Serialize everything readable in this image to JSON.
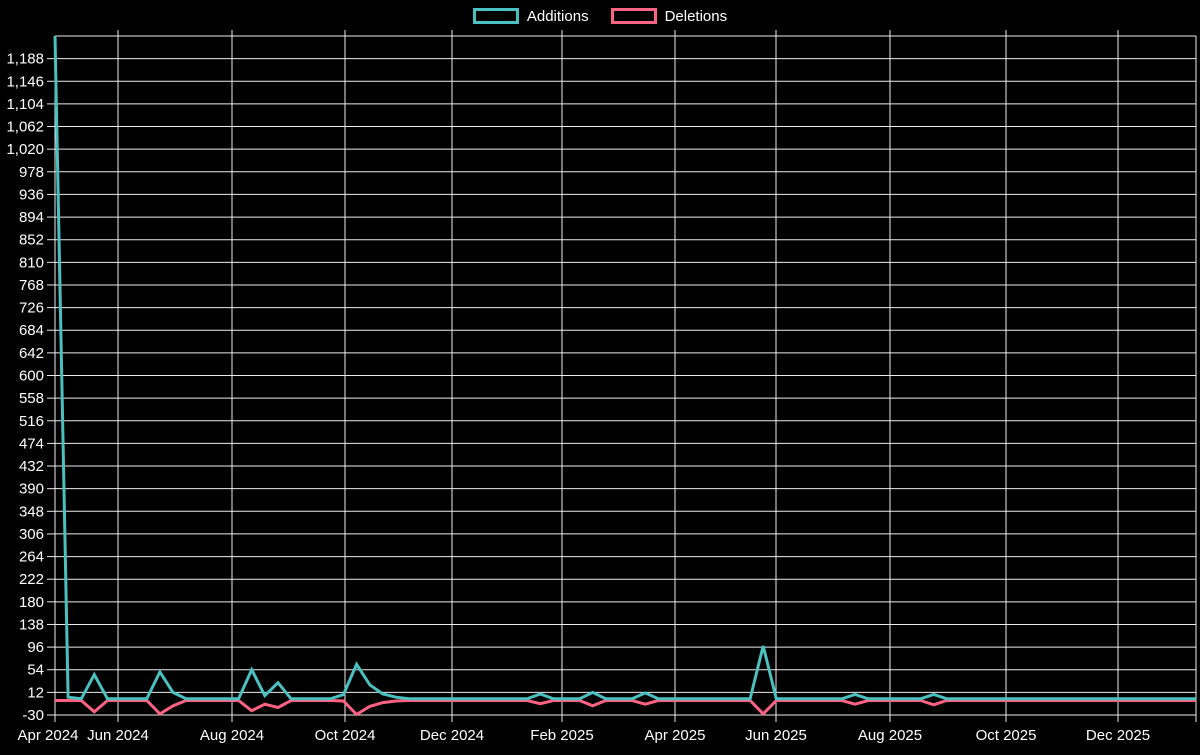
{
  "page": {
    "background": "#000000",
    "text_color": "#ffffff"
  },
  "legend": {
    "position": "top",
    "items": [
      {
        "label": "Additions",
        "color": "#4bc0c0"
      },
      {
        "label": "Deletions",
        "color": "#ff6384"
      }
    ]
  },
  "chart_data": {
    "type": "line",
    "title": "",
    "grid": true,
    "legend_position": "top",
    "background": "#000000",
    "grid_color": "#ececec",
    "text_color": "#ffffff",
    "x_unit": "weeks (one point per week, starting late Apr 2024)",
    "weeks_total": 87,
    "x_axis": {
      "labels": [
        "Apr 2024",
        "Jun 2024",
        "Aug 2024",
        "Oct 2024",
        "Dec 2024",
        "Feb 2025",
        "Apr 2025",
        "Jun 2025",
        "Aug 2025",
        "Oct 2025",
        "Dec 2025"
      ]
    },
    "y_axis": {
      "min": -30,
      "max": 1230,
      "tick_step": 42,
      "tick_labels": [
        "-30",
        "12",
        "54",
        "96",
        "138",
        "180",
        "222",
        "264",
        "306",
        "348",
        "390",
        "432",
        "474",
        "516",
        "558",
        "600",
        "642",
        "684",
        "726",
        "768",
        "810",
        "852",
        "894",
        "936",
        "978",
        "1,020",
        "1,062",
        "1,104",
        "1,146",
        "1,188"
      ]
    },
    "series": [
      {
        "name": "Additions",
        "color": "#4bc0c0",
        "line_width": 3,
        "default": 0,
        "points": {
          "0": 1230,
          "1": 3,
          "3": 45,
          "8": 50,
          "9": 12,
          "15": 54,
          "16": 6,
          "17": 30,
          "22": 8,
          "23": 64,
          "24": 26,
          "25": 9,
          "26": 3,
          "37": 9,
          "41": 12,
          "45": 11,
          "54": 98,
          "61": 8,
          "67": 8
        }
      },
      {
        "name": "Deletions",
        "color": "#ff6384",
        "line_width": 3,
        "default": -3,
        "points": {
          "0": -3,
          "3": -24,
          "8": -28,
          "9": -13,
          "15": -22,
          "16": -10,
          "17": -16,
          "22": -4,
          "23": -29,
          "24": -14,
          "25": -7,
          "26": -4,
          "37": -9,
          "41": -13,
          "45": -10,
          "54": -28,
          "61": -10,
          "67": -11
        }
      }
    ]
  }
}
